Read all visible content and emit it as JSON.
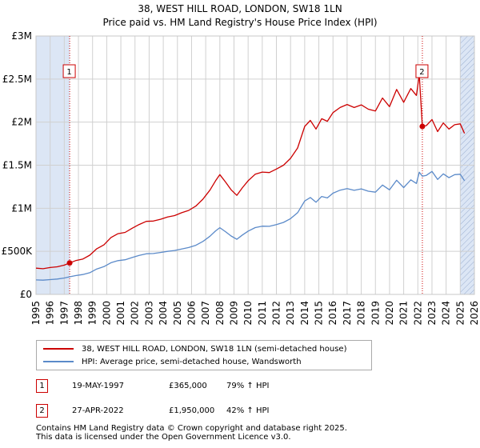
{
  "title_line1": "38, WEST HILL ROAD, LONDON, SW18 1LN",
  "title_line2": "Price paid vs. HM Land Registry's House Price Index (HPI)",
  "colors": {
    "property": "#cc0000",
    "hpi": "#5b8ac9",
    "band": "#dce6f5",
    "grid": "#d0d0d0"
  },
  "chart_data": {
    "type": "line",
    "title": "38, WEST HILL ROAD, LONDON, SW18 1LN — Price paid vs. HM Land Registry's House Price Index (HPI)",
    "xlim": [
      1995,
      2026
    ],
    "ylim": [
      0,
      3000000
    ],
    "x_ticks": [
      "1995",
      "1996",
      "1997",
      "1998",
      "1999",
      "2000",
      "2001",
      "2002",
      "2003",
      "2004",
      "2005",
      "2006",
      "2007",
      "2008",
      "2009",
      "2010",
      "2011",
      "2012",
      "2013",
      "2014",
      "2015",
      "2016",
      "2017",
      "2018",
      "2019",
      "2020",
      "2021",
      "2022",
      "2023",
      "2024",
      "2025",
      "2026"
    ],
    "y_ticks": [
      {
        "value": 0,
        "label": "£0"
      },
      {
        "value": 500000,
        "label": "£500K"
      },
      {
        "value": 1000000,
        "label": "£1M"
      },
      {
        "value": 1500000,
        "label": "£1.5M"
      },
      {
        "value": 2000000,
        "label": "£2M"
      },
      {
        "value": 2500000,
        "label": "£2.5M"
      },
      {
        "value": 3000000,
        "label": "£3M"
      }
    ],
    "series": [
      {
        "name": "38, WEST HILL ROAD, LONDON, SW18 1LN (semi-detached house)",
        "x": [
          1995.0,
          1995.5,
          1996.0,
          1996.5,
          1997.0,
          1997.38,
          1997.8,
          1998.3,
          1998.8,
          1999.3,
          1999.8,
          2000.3,
          2000.8,
          2001.3,
          2001.8,
          2002.3,
          2002.8,
          2003.3,
          2003.8,
          2004.3,
          2004.8,
          2005.3,
          2005.8,
          2006.3,
          2006.8,
          2007.3,
          2007.7,
          2008.0,
          2008.4,
          2008.8,
          2009.2,
          2009.6,
          2010.0,
          2010.5,
          2011.0,
          2011.5,
          2012.0,
          2012.5,
          2013.0,
          2013.5,
          2014.0,
          2014.4,
          2014.8,
          2015.2,
          2015.6,
          2016.0,
          2016.5,
          2017.0,
          2017.5,
          2018.0,
          2018.5,
          2019.0,
          2019.5,
          2020.0,
          2020.5,
          2021.0,
          2021.5,
          2021.9,
          2022.1,
          2022.32,
          2022.6,
          2023.0,
          2023.4,
          2023.8,
          2024.2,
          2024.6,
          2025.0,
          2025.3
        ],
        "values": [
          305000,
          298000,
          312000,
          320000,
          340000,
          365000,
          392000,
          410000,
          455000,
          530000,
          575000,
          660000,
          705000,
          720000,
          768000,
          812000,
          848000,
          852000,
          872000,
          898000,
          915000,
          948000,
          975000,
          1025000,
          1105000,
          1210000,
          1320000,
          1390000,
          1305000,
          1215000,
          1150000,
          1240000,
          1320000,
          1395000,
          1420000,
          1415000,
          1455000,
          1500000,
          1580000,
          1700000,
          1950000,
          2020000,
          1920000,
          2040000,
          2010000,
          2110000,
          2170000,
          2205000,
          2170000,
          2200000,
          2150000,
          2130000,
          2280000,
          2180000,
          2380000,
          2230000,
          2390000,
          2310000,
          2550000,
          1950000,
          1960000,
          2030000,
          1890000,
          1990000,
          1920000,
          1970000,
          1980000,
          1870000
        ]
      },
      {
        "name": "HPI: Average price, semi-detached house, Wandsworth",
        "x": [
          1995.0,
          1995.5,
          1996.0,
          1996.5,
          1997.0,
          1997.38,
          1997.8,
          1998.3,
          1998.8,
          1999.3,
          1999.8,
          2000.3,
          2000.8,
          2001.3,
          2001.8,
          2002.3,
          2002.8,
          2003.3,
          2003.8,
          2004.3,
          2004.8,
          2005.3,
          2005.8,
          2006.3,
          2006.8,
          2007.3,
          2007.7,
          2008.0,
          2008.4,
          2008.8,
          2009.2,
          2009.6,
          2010.0,
          2010.5,
          2011.0,
          2011.5,
          2012.0,
          2012.5,
          2013.0,
          2013.5,
          2014.0,
          2014.4,
          2014.8,
          2015.2,
          2015.6,
          2016.0,
          2016.5,
          2017.0,
          2017.5,
          2018.0,
          2018.5,
          2019.0,
          2019.5,
          2020.0,
          2020.5,
          2021.0,
          2021.5,
          2021.9,
          2022.1,
          2022.32,
          2022.6,
          2023.0,
          2023.4,
          2023.8,
          2024.2,
          2024.6,
          2025.0,
          2025.3
        ],
        "values": [
          168000,
          165000,
          172000,
          178000,
          190000,
          204000,
          218000,
          230000,
          252000,
          295000,
          322000,
          368000,
          392000,
          402000,
          428000,
          452000,
          472000,
          475000,
          487000,
          500000,
          510000,
          528000,
          544000,
          570000,
          615000,
          675000,
          737000,
          775000,
          728000,
          678000,
          640000,
          690000,
          735000,
          776000,
          792000,
          790000,
          810000,
          836000,
          880000,
          948000,
          1085000,
          1125000,
          1070000,
          1137000,
          1120000,
          1175000,
          1210000,
          1228000,
          1208000,
          1225000,
          1198000,
          1187000,
          1270000,
          1214000,
          1325000,
          1240000,
          1330000,
          1288000,
          1418000,
          1373000,
          1382000,
          1428000,
          1335000,
          1400000,
          1355000,
          1390000,
          1395000,
          1320000
        ]
      }
    ],
    "markers": [
      {
        "id": "1",
        "x": 1997.38,
        "value": 365000
      },
      {
        "id": "2",
        "x": 2022.32,
        "value": 1950000
      }
    ],
    "legend_position": "below",
    "grid": true
  },
  "legend": {
    "property_label": "38, WEST HILL ROAD, LONDON, SW18 1LN (semi-detached house)",
    "hpi_label": "HPI: Average price, semi-detached house, Wandsworth"
  },
  "sales": [
    {
      "id": "1",
      "date": "19-MAY-1997",
      "price": "£365,000",
      "hpi": "79% ↑ HPI"
    },
    {
      "id": "2",
      "date": "27-APR-2022",
      "price": "£1,950,000",
      "hpi": "42% ↑ HPI"
    }
  ],
  "footer_line1": "Contains HM Land Registry data © Crown copyright and database right 2025.",
  "footer_line2": "This data is licensed under the Open Government Licence v3.0."
}
